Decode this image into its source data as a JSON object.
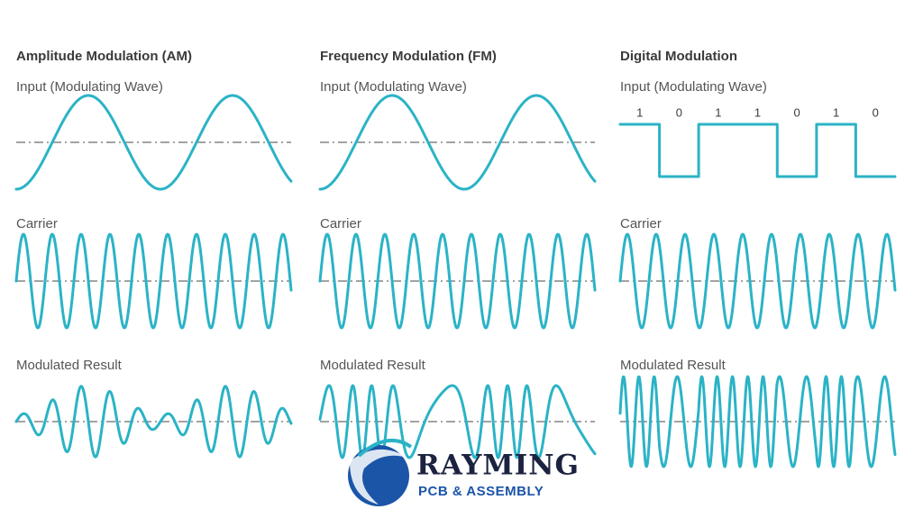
{
  "columns": [
    {
      "title": "Amplitude Modulation (AM)",
      "input_label": "Input (Modulating Wave)",
      "carrier_label": "Carrier",
      "result_label": "Modulated Result"
    },
    {
      "title": "Frequency Modulation (FM)",
      "input_label": "Input (Modulating Wave)",
      "carrier_label": "Carrier",
      "result_label": "Modulated Result"
    },
    {
      "title": "Digital Modulation",
      "input_label": "Input (Modulating Wave)",
      "carrier_label": "Carrier",
      "result_label": "Modulated Result",
      "bits": [
        "1",
        "0",
        "1",
        "1",
        "0",
        "1",
        "0"
      ]
    }
  ],
  "logo": {
    "name": "RAYMING",
    "tagline": "PCB & ASSEMBLY"
  }
}
